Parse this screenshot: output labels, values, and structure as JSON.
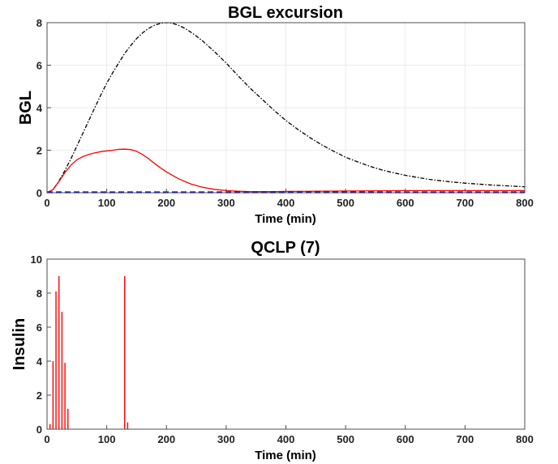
{
  "chart_data": [
    {
      "type": "line",
      "title": "BGL excursion",
      "xlabel": "Time (min)",
      "ylabel": "BGL",
      "xlim": [
        0,
        800
      ],
      "ylim": [
        0,
        8
      ],
      "xticks": [
        0,
        100,
        200,
        300,
        400,
        500,
        600,
        700,
        800
      ],
      "yticks": [
        0,
        2,
        4,
        6,
        8
      ],
      "grid": true,
      "series": [
        {
          "color": "#000000",
          "style": "dashdot",
          "x": [
            0,
            10,
            20,
            30,
            40,
            50,
            60,
            70,
            80,
            90,
            100,
            110,
            120,
            130,
            140,
            150,
            160,
            170,
            180,
            190,
            200,
            210,
            220,
            230,
            240,
            250,
            260,
            280,
            300,
            320,
            340,
            360,
            380,
            400,
            420,
            440,
            460,
            480,
            500,
            520,
            540,
            560,
            580,
            600,
            620,
            640,
            660,
            680,
            700,
            720,
            740,
            760,
            780,
            800
          ],
          "values": [
            0,
            0.15,
            0.55,
            1.05,
            1.6,
            2.2,
            2.8,
            3.4,
            4.0,
            4.6,
            5.15,
            5.65,
            6.1,
            6.55,
            6.92,
            7.25,
            7.52,
            7.73,
            7.88,
            7.97,
            8.0,
            7.97,
            7.88,
            7.75,
            7.57,
            7.37,
            7.15,
            6.65,
            6.1,
            5.5,
            4.92,
            4.4,
            3.88,
            3.4,
            2.98,
            2.6,
            2.25,
            1.95,
            1.67,
            1.45,
            1.25,
            1.08,
            0.94,
            0.82,
            0.72,
            0.63,
            0.56,
            0.5,
            0.45,
            0.41,
            0.37,
            0.34,
            0.31,
            0.28
          ]
        },
        {
          "color": "#ff0000",
          "style": "solid",
          "x": [
            0,
            10,
            20,
            30,
            40,
            50,
            60,
            70,
            80,
            90,
            100,
            110,
            120,
            130,
            140,
            150,
            160,
            170,
            180,
            190,
            200,
            220,
            240,
            260,
            280,
            300,
            320,
            340,
            360,
            380,
            400,
            450,
            500,
            550,
            600,
            650,
            700,
            750,
            800
          ],
          "values": [
            0,
            0.15,
            0.52,
            0.95,
            1.3,
            1.55,
            1.7,
            1.8,
            1.88,
            1.93,
            1.97,
            2.0,
            2.04,
            2.05,
            2.03,
            1.95,
            1.8,
            1.6,
            1.38,
            1.17,
            0.98,
            0.66,
            0.42,
            0.26,
            0.16,
            0.1,
            0.07,
            0.05,
            0.05,
            0.05,
            0.06,
            0.07,
            0.08,
            0.09,
            0.1,
            0.1,
            0.1,
            0.1,
            0.1
          ]
        },
        {
          "color": "#0000ff",
          "style": "dashed",
          "x": [
            0,
            800
          ],
          "values": [
            0.02,
            0.02
          ]
        }
      ]
    },
    {
      "type": "bar",
      "title": "QCLP (7)",
      "xlabel": "Time (min)",
      "ylabel": "Insulin",
      "xlim": [
        0,
        800
      ],
      "ylim": [
        0,
        10
      ],
      "xticks": [
        0,
        100,
        200,
        300,
        400,
        500,
        600,
        700,
        800
      ],
      "yticks": [
        0,
        2,
        4,
        6,
        8,
        10
      ],
      "grid": false,
      "color": "#ff0000",
      "x": [
        5,
        10,
        15,
        20,
        25,
        30,
        35,
        130,
        135
      ],
      "values": [
        0.3,
        4.0,
        8.1,
        9.0,
        6.9,
        3.9,
        1.2,
        9.0,
        0.4
      ]
    }
  ]
}
